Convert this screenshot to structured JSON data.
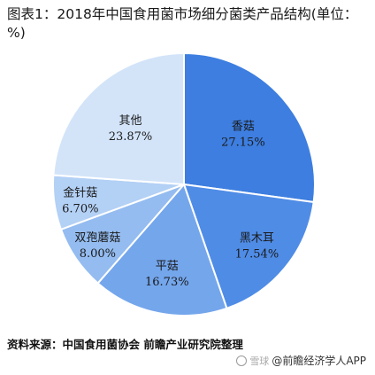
{
  "title": "图表1：2018年中国食用菌市场细分菌类产品结构(单位：%)",
  "source": "资料来源：中国食用菌协会 前瞻产业研究院整理",
  "footer": {
    "platform": "雪球",
    "account": "@前瞻经济学人APP"
  },
  "chart_data": {
    "type": "pie",
    "title": "2018年中国食用菌市场细分菌类产品结构",
    "unit": "%",
    "start_angle_deg": 0,
    "direction": "clockwise",
    "slices": [
      {
        "name": "香菇",
        "value": 27.15,
        "label": "27.15%",
        "color": "#3d7ee0"
      },
      {
        "name": "黑木耳",
        "value": 17.54,
        "label": "17.54%",
        "color": "#4f8ce6"
      },
      {
        "name": "平菇",
        "value": 16.73,
        "label": "16.73%",
        "color": "#74a6ec"
      },
      {
        "name": "双孢蘑菇",
        "value": 8.0,
        "label": "8.00%",
        "color": "#94bcf0"
      },
      {
        "name": "金针菇",
        "value": 6.7,
        "label": "6.70%",
        "color": "#b3d0f5"
      },
      {
        "name": "其他",
        "value": 23.87,
        "label": "23.87%",
        "color": "#d3e4f9"
      }
    ]
  }
}
